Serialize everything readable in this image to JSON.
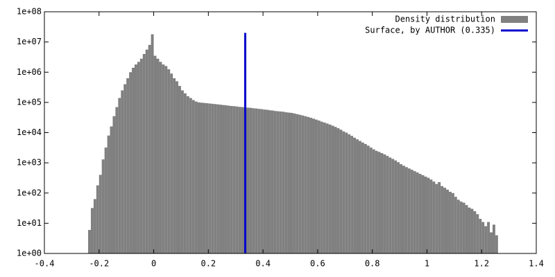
{
  "chart_data": {
    "type": "histogram",
    "log_y": true,
    "grid": false,
    "legend": "top-right",
    "bins": [
      -0.24,
      -0.23,
      -0.22,
      -0.21,
      -0.2,
      -0.19,
      -0.18,
      -0.17,
      -0.16,
      -0.15,
      -0.14,
      -0.13,
      -0.12,
      -0.11,
      -0.1,
      -0.09,
      -0.08,
      -0.07,
      -0.06,
      -0.05,
      -0.04,
      -0.03,
      -0.02,
      -0.01,
      0,
      0.01,
      0.02,
      0.03,
      0.04,
      0.05,
      0.06,
      0.07,
      0.08,
      0.09,
      0.1,
      0.11,
      0.12,
      0.13,
      0.14,
      0.15,
      0.16,
      0.17,
      0.18,
      0.19,
      0.2,
      0.21,
      0.22,
      0.23,
      0.24,
      0.25,
      0.26,
      0.27,
      0.28,
      0.29,
      0.3,
      0.31,
      0.32,
      0.33,
      0.34,
      0.35,
      0.36,
      0.37,
      0.38,
      0.39,
      0.4,
      0.41,
      0.42,
      0.43,
      0.44,
      0.45,
      0.46,
      0.47,
      0.48,
      0.49,
      0.5,
      0.51,
      0.52,
      0.53,
      0.54,
      0.55,
      0.56,
      0.57,
      0.58,
      0.59,
      0.6,
      0.61,
      0.62,
      0.63,
      0.64,
      0.65,
      0.66,
      0.67,
      0.68,
      0.69,
      0.7,
      0.71,
      0.72,
      0.73,
      0.74,
      0.75,
      0.76,
      0.77,
      0.78,
      0.79,
      0.8,
      0.81,
      0.82,
      0.83,
      0.84,
      0.85,
      0.86,
      0.87,
      0.88,
      0.89,
      0.9,
      0.91,
      0.92,
      0.93,
      0.94,
      0.95,
      0.96,
      0.97,
      0.98,
      0.99,
      1,
      1.01,
      1.02,
      1.03,
      1.04,
      1.05,
      1.06,
      1.07,
      1.08,
      1.09,
      1.1,
      1.11,
      1.12,
      1.13,
      1.14,
      1.15,
      1.16,
      1.17,
      1.18,
      1.19,
      1.2,
      1.21,
      1.22,
      1.23,
      1.24,
      1.25,
      1.26
    ],
    "series": [
      {
        "name": "Density distribution",
        "color": "#808080",
        "values": [
          6,
          32,
          63,
          180,
          400,
          1300,
          3200,
          8000,
          16000,
          35000,
          70000,
          140000,
          250000,
          400000,
          630000,
          1000000,
          1400000,
          1800000,
          2200000,
          2800000,
          4000000,
          5600000,
          8000000,
          18000000,
          3500000,
          2800000,
          2200000,
          1800000,
          1600000,
          1250000,
          900000,
          630000,
          500000,
          350000,
          250000,
          200000,
          160000,
          140000,
          120000,
          107000,
          100000,
          98000,
          96000,
          94000,
          92000,
          90000,
          88000,
          86000,
          84000,
          82000,
          80000,
          78000,
          76000,
          75000,
          73000,
          71000,
          70000,
          68000,
          67000,
          66000,
          64000,
          63000,
          61000,
          60000,
          58000,
          57000,
          55000,
          54000,
          52000,
          51000,
          50000,
          49000,
          47000,
          46000,
          45000,
          43000,
          41000,
          39000,
          37000,
          35000,
          33000,
          31000,
          29000,
          27000,
          25000,
          23000,
          21500,
          20000,
          18500,
          17000,
          15500,
          14000,
          12500,
          11000,
          10000,
          8800,
          7800,
          6800,
          6000,
          5300,
          4700,
          4200,
          3700,
          3200,
          2800,
          2500,
          2300,
          2100,
          1900,
          1700,
          1500,
          1350,
          1200,
          1050,
          900,
          800,
          720,
          650,
          590,
          530,
          480,
          430,
          390,
          350,
          320,
          280,
          240,
          200,
          230,
          170,
          150,
          130,
          110,
          100,
          75,
          60,
          52,
          48,
          40,
          33,
          30,
          25,
          20,
          14,
          11,
          8,
          11,
          5,
          9,
          4
        ]
      }
    ],
    "vline": {
      "name": "Surface, by AUTHOR (0.335)",
      "color": "#0000cc",
      "x": 0.335,
      "y": [
        1,
        20000000
      ]
    },
    "xlim": [
      -0.4,
      1.4
    ],
    "xticks": [
      -0.4,
      -0.2,
      0,
      0.2,
      0.4,
      0.6,
      0.8,
      1,
      1.2,
      1.4
    ],
    "ylim": [
      1,
      100000000
    ],
    "yticks": [
      {
        "value": 1,
        "label": "1e+00"
      },
      {
        "value": 10,
        "label": "1e+01"
      },
      {
        "value": 100,
        "label": "1e+02"
      },
      {
        "value": 1000,
        "label": "1e+03"
      },
      {
        "value": 10000,
        "label": "1e+04"
      },
      {
        "value": 100000,
        "label": "1e+05"
      },
      {
        "value": 1000000,
        "label": "1e+06"
      },
      {
        "value": 10000000,
        "label": "1e+07"
      },
      {
        "value": 100000000,
        "label": "1e+08"
      }
    ]
  }
}
